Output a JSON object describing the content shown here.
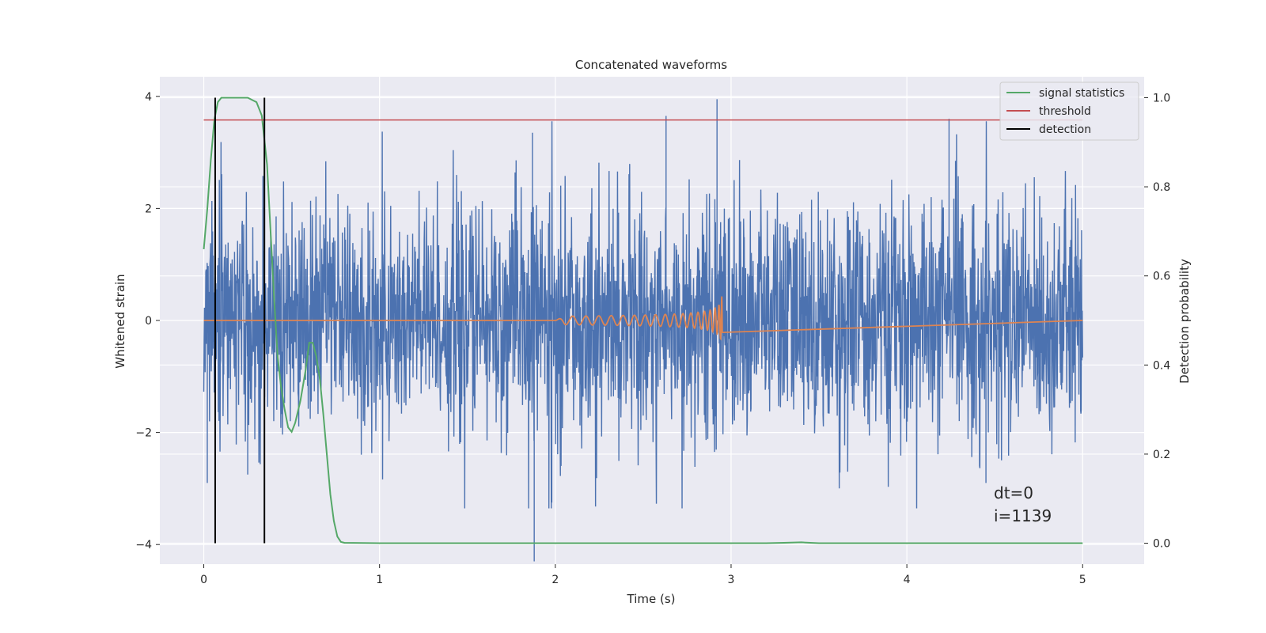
{
  "chart_data": {
    "type": "line",
    "title": "Concatenated waveforms",
    "xlabel": "Time (s)",
    "ylabel": "Whitened strain",
    "y2label": "Detection probability",
    "xlim": [
      -0.25,
      5.35
    ],
    "ylim": [
      -4.35,
      4.35
    ],
    "y2lim": [
      -0.047,
      1.047
    ],
    "xticks": [
      0,
      1,
      2,
      3,
      4,
      5
    ],
    "yticks": [
      -4,
      -2,
      0,
      2,
      4
    ],
    "y2ticks": [
      0.0,
      0.2,
      0.4,
      0.6,
      0.8,
      1.0
    ],
    "grid": true,
    "legend_position": "top-right",
    "legend": [
      {
        "label": "signal statistics",
        "color": "#55a868"
      },
      {
        "label": "threshold",
        "color": "#c44e52"
      },
      {
        "label": "detection",
        "color": "#000000"
      }
    ],
    "annotation": [
      "dt=0",
      "i=1139"
    ],
    "colors": {
      "strain": "#4c72b0",
      "waveform": "#dd8452",
      "signal": "#55a868",
      "threshold": "#c44e52",
      "detection": "#000000",
      "plot_bg": "#eaeaf2",
      "grid": "#ffffff"
    },
    "series": [
      {
        "id": "signal",
        "axis": "y2",
        "x": [
          0,
          0.02,
          0.04,
          0.06,
          0.08,
          0.1,
          0.15,
          0.2,
          0.25,
          0.3,
          0.33,
          0.36,
          0.38,
          0.4,
          0.42,
          0.44,
          0.46,
          0.48,
          0.5,
          0.52,
          0.55,
          0.58,
          0.6,
          0.62,
          0.64,
          0.66,
          0.68,
          0.7,
          0.72,
          0.74,
          0.76,
          0.78,
          0.8,
          1.0,
          1.5,
          2.0,
          2.5,
          3.0,
          3.2,
          3.3,
          3.4,
          3.5,
          4.0,
          4.5,
          5.0
        ],
        "y": [
          0.66,
          0.75,
          0.86,
          0.95,
          0.99,
          1.0,
          1.0,
          1.0,
          1.0,
          0.99,
          0.96,
          0.85,
          0.7,
          0.55,
          0.42,
          0.35,
          0.3,
          0.26,
          0.25,
          0.27,
          0.32,
          0.39,
          0.45,
          0.45,
          0.42,
          0.37,
          0.29,
          0.2,
          0.11,
          0.05,
          0.015,
          0.003,
          0.001,
          0.0,
          0.0,
          0.0,
          0.0,
          0.0,
          0.0,
          0.001,
          0.002,
          0.0,
          0.0,
          0.0,
          0.0
        ]
      },
      {
        "id": "threshold",
        "axis": "y2",
        "x": [
          0,
          5
        ],
        "y": [
          0.95,
          0.95
        ]
      },
      {
        "id": "detection",
        "axis": "y2",
        "x": [
          0.065,
          0.345
        ],
        "ymin": 0.0,
        "ymax": 1.0
      },
      {
        "id": "strain",
        "axis": "y",
        "x_range": [
          0,
          5
        ],
        "typical_amplitude": 1.2,
        "peak_range": [
          -4.3,
          3.95
        ]
      },
      {
        "id": "waveform",
        "axis": "y",
        "x_range": [
          0,
          5
        ],
        "chirp_start": 2.0,
        "chirp_end": 2.95,
        "chirp_peak": 0.75
      }
    ]
  }
}
